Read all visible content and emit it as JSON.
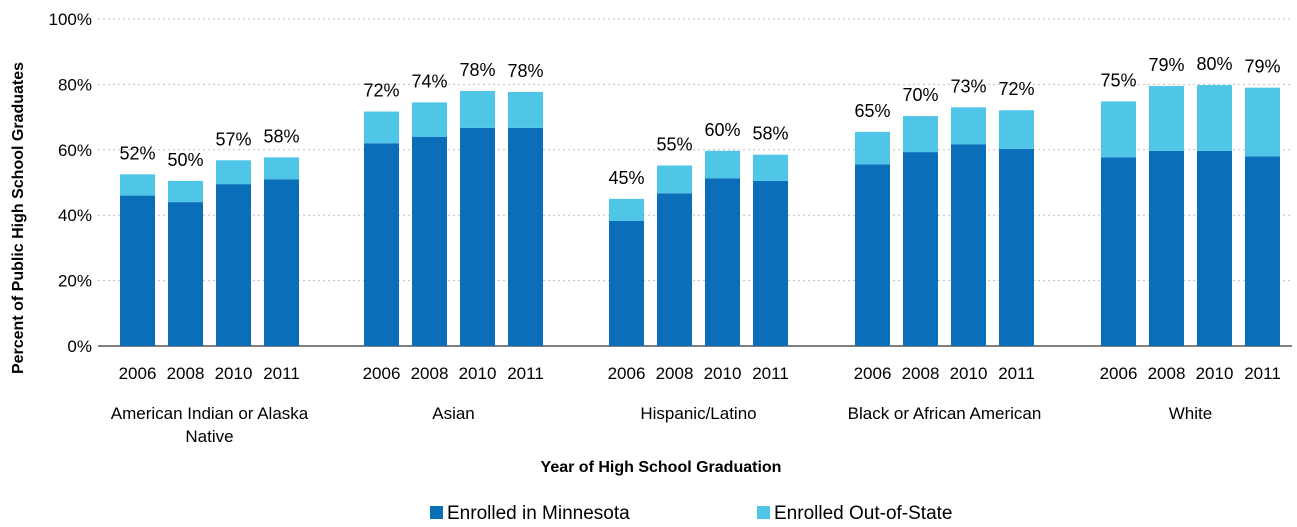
{
  "chart_data": {
    "type": "bar",
    "stacked": true,
    "xlabel": "Year of High School Graduation",
    "ylabel": "Percent of Public High School Graduates",
    "ylim": [
      0,
      100
    ],
    "yticks": [
      "0%",
      "20%",
      "40%",
      "60%",
      "80%",
      "100%"
    ],
    "grid": true,
    "legend_position": "bottom",
    "groups": [
      {
        "label": "American Indian or Alaska Native",
        "label_lines": [
          "American Indian or Alaska",
          "Native"
        ],
        "years": [
          "2006",
          "2008",
          "2010",
          "2011"
        ],
        "minnesota": [
          46,
          44,
          49.5,
          51
        ],
        "out_of_state": [
          6.5,
          6.5,
          7.3,
          6.7
        ],
        "totals": [
          "52%",
          "50%",
          "57%",
          "58%"
        ]
      },
      {
        "label": "Asian",
        "label_lines": [
          "Asian"
        ],
        "years": [
          "2006",
          "2008",
          "2010",
          "2011"
        ],
        "minnesota": [
          62,
          64,
          66.7,
          66.7
        ],
        "out_of_state": [
          9.7,
          10.5,
          11.3,
          11.0
        ],
        "totals": [
          "72%",
          "74%",
          "78%",
          "78%"
        ]
      },
      {
        "label": "Hispanic/Latino",
        "label_lines": [
          "Hispanic/Latino"
        ],
        "years": [
          "2006",
          "2008",
          "2010",
          "2011"
        ],
        "minnesota": [
          38.3,
          46.7,
          51.3,
          50.5
        ],
        "out_of_state": [
          6.7,
          8.5,
          8.4,
          8.0
        ],
        "totals": [
          "45%",
          "55%",
          "60%",
          "58%"
        ]
      },
      {
        "label": "Black or African American",
        "label_lines": [
          "Black or African American"
        ],
        "years": [
          "2006",
          "2008",
          "2010",
          "2011"
        ],
        "minnesota": [
          55.5,
          59.3,
          61.7,
          60.3
        ],
        "out_of_state": [
          10,
          11,
          11.3,
          11.8
        ],
        "totals": [
          "65%",
          "70%",
          "73%",
          "72%"
        ]
      },
      {
        "label": "White",
        "label_lines": [
          "White"
        ],
        "years": [
          "2006",
          "2008",
          "2010",
          "2011"
        ],
        "minnesota": [
          57.7,
          59.7,
          59.7,
          58
        ],
        "out_of_state": [
          17.1,
          19.8,
          20.1,
          21
        ],
        "totals": [
          "75%",
          "79%",
          "80%",
          "79%"
        ]
      }
    ],
    "series": [
      {
        "name": "Enrolled in Minnesota",
        "color": "#0a6eb9"
      },
      {
        "name": "Enrolled Out-of-State",
        "color": "#4fc6e8"
      }
    ]
  }
}
